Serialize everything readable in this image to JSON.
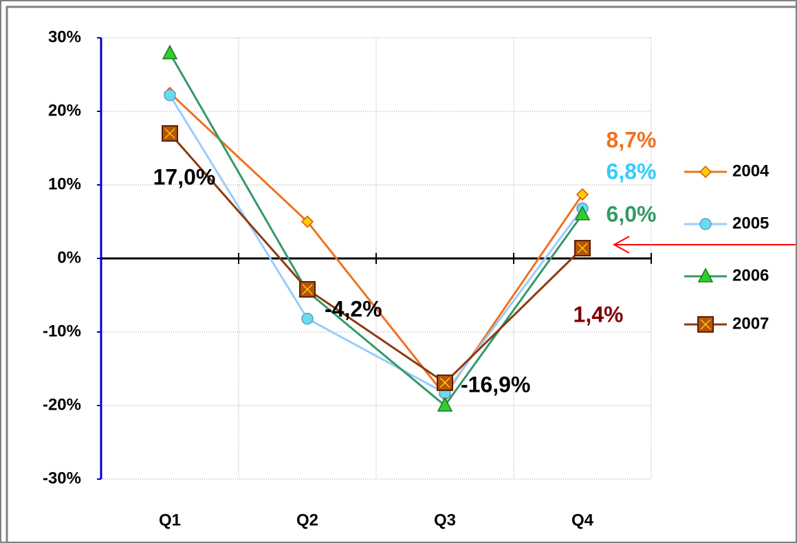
{
  "chart_data": {
    "type": "line",
    "categories": [
      "Q1",
      "Q2",
      "Q3",
      "Q4"
    ],
    "ylim": [
      -30,
      30
    ],
    "yticks": [
      {
        "value": -30,
        "label": "-30%"
      },
      {
        "value": -20,
        "label": "-20%"
      },
      {
        "value": -10,
        "label": "-10%"
      },
      {
        "value": 0,
        "label": "0%"
      },
      {
        "value": 10,
        "label": "10%"
      },
      {
        "value": 20,
        "label": "20%"
      },
      {
        "value": 30,
        "label": "30%"
      }
    ],
    "grid": true,
    "legend": "right",
    "series": [
      {
        "name": "2004",
        "color": "#f07020",
        "marker": "diamond",
        "marker_color": "#ffcc00",
        "values": [
          22.5,
          5.0,
          -18.6,
          8.7
        ],
        "value_labels": [
          null,
          null,
          null,
          "8,7%"
        ],
        "value_label_colors": [
          null,
          null,
          null,
          "#f07020"
        ]
      },
      {
        "name": "2005",
        "color": "#99ccff",
        "marker": "circle",
        "marker_color": "#66ddee",
        "values": [
          22.2,
          -8.2,
          -18.3,
          6.8
        ],
        "value_labels": [
          null,
          null,
          null,
          "6,8%"
        ],
        "value_label_colors": [
          null,
          null,
          null,
          "#33ccff"
        ]
      },
      {
        "name": "2006",
        "color": "#339966",
        "marker": "triangle",
        "marker_color": "#33cc33",
        "values": [
          27.9,
          -4.5,
          -20.0,
          6.0
        ],
        "value_labels": [
          null,
          null,
          null,
          "6,0%"
        ],
        "value_label_colors": [
          null,
          null,
          null,
          "#339966"
        ]
      },
      {
        "name": "2007",
        "color": "#8b3a0f",
        "marker": "square-x",
        "marker_color": "#b5530f",
        "values": [
          17.0,
          -4.2,
          -16.9,
          1.4
        ],
        "value_labels": [
          "17,0%",
          "-4,2%",
          "-16,9%",
          "1,4%"
        ],
        "value_label_colors": [
          "#000000",
          "#000000",
          "#000000",
          "#800000"
        ]
      }
    ]
  }
}
